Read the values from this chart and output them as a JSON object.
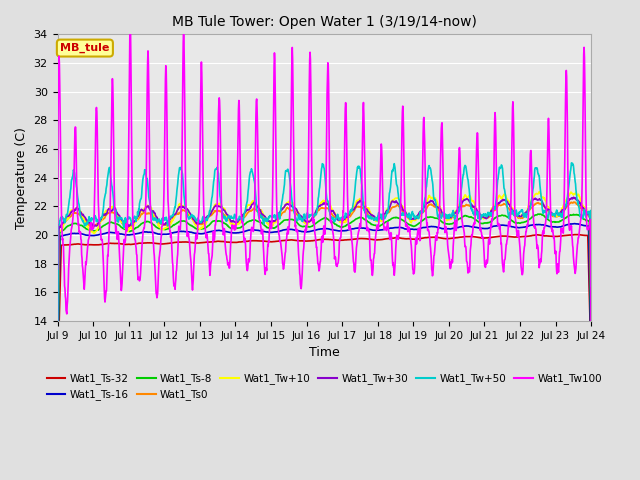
{
  "title": "MB Tule Tower: Open Water 1 (3/19/14-now)",
  "xlabel": "Time",
  "ylabel": "Temperature (C)",
  "ylim": [
    14,
    34
  ],
  "yticks": [
    14,
    16,
    18,
    20,
    22,
    24,
    26,
    28,
    30,
    32,
    34
  ],
  "xtick_labels": [
    "Jul 9",
    "Jul 10",
    "Jul 11",
    "Jul 12",
    "Jul 13",
    "Jul 14",
    "Jul 15",
    "Jul 16",
    "Jul 17",
    "Jul 18",
    "Jul 19",
    "Jul 20",
    "Jul 21",
    "Jul 22",
    "Jul 23",
    "Jul 24"
  ],
  "fig_bg": "#e0e0e0",
  "plot_bg": "#e8e8e8",
  "grid_color": "#ffffff",
  "legend_box_color": "#ffff99",
  "legend_box_text": "MB_tule",
  "legend_box_border": "#ccaa00",
  "series": [
    {
      "label": "Wat1_Ts-32",
      "color": "#cc0000",
      "lw": 1.2
    },
    {
      "label": "Wat1_Ts-16",
      "color": "#0000cc",
      "lw": 1.2
    },
    {
      "label": "Wat1_Ts-8",
      "color": "#00cc00",
      "lw": 1.2
    },
    {
      "label": "Wat1_Ts0",
      "color": "#ff8800",
      "lw": 1.2
    },
    {
      "label": "Wat1_Tw+10",
      "color": "#ffff00",
      "lw": 1.2
    },
    {
      "label": "Wat1_Tw+30",
      "color": "#8800cc",
      "lw": 1.2
    },
    {
      "label": "Wat1_Tw+50",
      "color": "#00cccc",
      "lw": 1.2
    },
    {
      "label": "Wat1_Tw100",
      "color": "#ff00ff",
      "lw": 1.2
    }
  ]
}
